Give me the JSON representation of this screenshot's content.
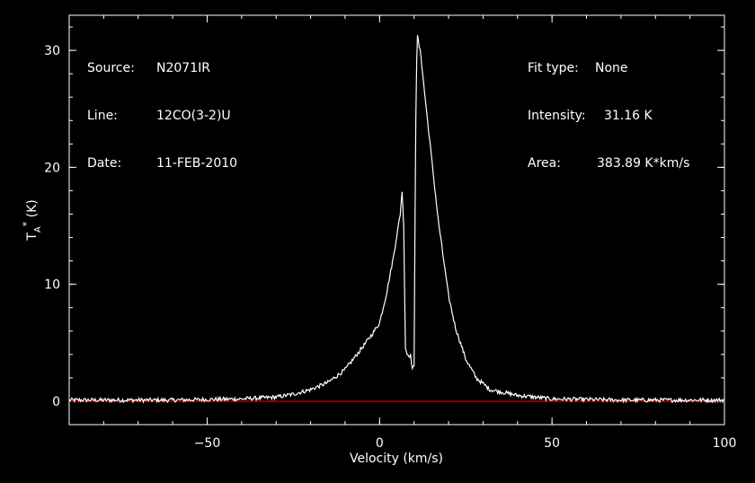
{
  "info_left": [
    {
      "label": "Source:",
      "value": "N2071IR"
    },
    {
      "label": "Line:",
      "value": "12CO(3-2)U"
    },
    {
      "label": "Date:",
      "value": "11-FEB-2010"
    }
  ],
  "info_right": [
    {
      "label": "Fit type:",
      "value": "None"
    },
    {
      "label": "Intensity:",
      "value": "31.16 K"
    },
    {
      "label": "Area:",
      "value": "383.89 K*km/s"
    }
  ],
  "chart_data": {
    "type": "line",
    "xlabel": "Velocity (km/s)",
    "ylabel_main": "T",
    "ylabel_sub": "A",
    "ylabel_sup": "*",
    "ylabel_unit": "(K)",
    "xlim": [
      -90,
      100
    ],
    "ylim": [
      -2,
      33
    ],
    "xticks": [
      -50,
      0,
      50,
      100
    ],
    "xtick_labels": [
      "−50",
      "0",
      "50",
      "100"
    ],
    "yticks": [
      0,
      10,
      20,
      30
    ],
    "ytick_labels": [
      "0",
      "10",
      "20",
      "30"
    ],
    "baseline": 0,
    "colors": {
      "background": "#000000",
      "axes": "#ffffff",
      "spectrum": "#ffffff",
      "baseline": "#ff0000"
    },
    "series": [
      {
        "x": [
          -90,
          -60,
          -40,
          -30,
          -25,
          -20,
          -15,
          -10,
          -5,
          -2,
          0,
          2,
          4,
          5,
          6,
          6.5,
          7,
          7.5,
          8,
          9,
          9.5,
          10,
          10.3,
          10.6,
          11,
          12,
          13,
          15,
          17,
          20,
          22,
          25,
          28,
          32,
          40,
          50,
          70,
          100
        ],
        "y": [
          0.1,
          0.1,
          0.2,
          0.35,
          0.6,
          1.0,
          1.6,
          2.7,
          4.6,
          5.8,
          6.7,
          9.2,
          12.3,
          14.2,
          16.0,
          18.0,
          15.0,
          4.6,
          4.0,
          3.9,
          2.8,
          2.9,
          16.0,
          28.0,
          31.16,
          29.5,
          26.5,
          21.0,
          15.5,
          9.0,
          6.3,
          3.6,
          2.0,
          1.0,
          0.5,
          0.2,
          0.1,
          0.1
        ]
      }
    ]
  }
}
